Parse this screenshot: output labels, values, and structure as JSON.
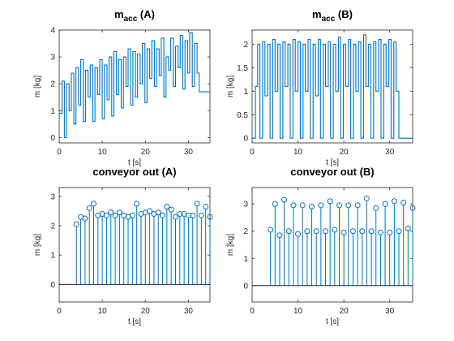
{
  "colors": {
    "line": "#0072BD",
    "axis": "#262626",
    "zero": "#000000"
  },
  "chart_data": [
    {
      "type": "line",
      "title_main": "m",
      "title_sub": "acc",
      "title_rest": " (A)",
      "xlabel": "t [s]",
      "ylabel": "m [kg]",
      "xlim": [
        0,
        35
      ],
      "ylim": [
        -0.2,
        4
      ],
      "xticks": [
        0,
        10,
        20,
        30
      ],
      "yticks": [
        0,
        1,
        2,
        3,
        4
      ],
      "x": [
        0,
        0.7,
        1.2,
        1.7,
        2.3,
        2.8,
        3.4,
        3.9,
        4.5,
        5.0,
        5.6,
        6.1,
        6.7,
        7.2,
        7.8,
        8.3,
        8.9,
        9.4,
        10.0,
        10.5,
        11.1,
        11.6,
        12.2,
        12.7,
        13.3,
        13.8,
        14.4,
        14.9,
        15.5,
        16.0,
        16.6,
        17.1,
        17.7,
        18.2,
        18.8,
        19.3,
        19.9,
        20.4,
        21.0,
        21.5,
        22.1,
        22.6,
        23.2,
        23.7,
        24.3,
        24.8,
        25.4,
        25.9,
        26.5,
        27.0,
        27.6,
        28.1,
        28.7,
        29.2,
        29.8,
        30.3,
        30.9,
        31.4,
        32.0,
        32.5,
        35
      ],
      "values": [
        0.9,
        2.1,
        0.0,
        2.0,
        1.0,
        2.4,
        0.5,
        2.6,
        1.2,
        2.9,
        0.6,
        2.5,
        1.5,
        2.7,
        0.6,
        2.6,
        1.6,
        2.9,
        0.7,
        2.7,
        1.4,
        3.0,
        0.8,
        3.2,
        1.6,
        2.9,
        1.1,
        3.0,
        1.9,
        3.3,
        1.2,
        3.2,
        1.5,
        3.1,
        2.0,
        3.5,
        1.3,
        3.3,
        2.2,
        3.6,
        1.9,
        3.3,
        2.3,
        3.7,
        1.5,
        3.0,
        2.5,
        3.7,
        1.9,
        3.4,
        2.6,
        3.8,
        1.8,
        3.6,
        2.4,
        3.9,
        1.9,
        3.5,
        2.4,
        1.7,
        1.7
      ]
    },
    {
      "type": "line",
      "title_main": "m",
      "title_sub": "acc",
      "title_rest": " (B)",
      "xlabel": "t [s]",
      "ylabel": "m [kg]",
      "xlim": [
        0,
        35
      ],
      "ylim": [
        -0.1,
        2.3
      ],
      "xticks": [
        0,
        10,
        20,
        30
      ],
      "yticks": [
        0,
        0.5,
        1,
        1.5,
        2
      ],
      "x": [
        0,
        0.7,
        1.2,
        1.7,
        2.3,
        2.8,
        3.4,
        3.9,
        4.5,
        5.0,
        5.6,
        6.1,
        6.7,
        7.2,
        7.8,
        8.3,
        8.9,
        9.4,
        10.0,
        10.5,
        11.1,
        11.6,
        12.2,
        12.7,
        13.3,
        13.8,
        14.4,
        14.9,
        15.5,
        16.0,
        16.6,
        17.1,
        17.7,
        18.2,
        18.8,
        19.3,
        19.9,
        20.4,
        21.0,
        21.5,
        22.1,
        22.6,
        23.2,
        23.7,
        24.3,
        24.8,
        25.4,
        25.9,
        26.5,
        27.0,
        27.6,
        28.1,
        28.7,
        29.2,
        29.8,
        30.3,
        30.9,
        31.4,
        32.0,
        32.5,
        35
      ],
      "values": [
        0.0,
        1.1,
        2.0,
        0.0,
        2.05,
        0.9,
        2.0,
        0.0,
        2.1,
        1.0,
        2.0,
        0.0,
        2.05,
        1.1,
        2.0,
        0.0,
        2.1,
        1.0,
        2.05,
        0.0,
        2.0,
        1.0,
        2.1,
        0.0,
        2.0,
        0.9,
        2.1,
        0.0,
        2.0,
        1.1,
        2.05,
        0.0,
        2.0,
        1.0,
        2.15,
        0.0,
        2.0,
        1.1,
        2.1,
        0.0,
        2.0,
        1.0,
        2.05,
        0.0,
        2.2,
        1.1,
        2.0,
        0.0,
        2.05,
        1.0,
        2.1,
        0.0,
        2.0,
        1.1,
        2.1,
        0.0,
        2.05,
        1.0,
        0.0,
        0.0,
        0.0
      ]
    },
    {
      "type": "stem",
      "title_main": "conveyor out (A)",
      "title_sub": "",
      "title_rest": "",
      "xlabel": "t [s]",
      "ylabel": "m [kg]",
      "xlim": [
        0,
        35
      ],
      "ylim": [
        -0.6,
        3.3
      ],
      "xticks": [
        0,
        10,
        20,
        30
      ],
      "yticks": [
        0,
        1,
        2,
        3
      ],
      "x": [
        4,
        5,
        6,
        7,
        8,
        9,
        10,
        11,
        12,
        13,
        14,
        15,
        16,
        17,
        18,
        19,
        20,
        21,
        22,
        23,
        24,
        25,
        26,
        27,
        28,
        29,
        30,
        31,
        32,
        33,
        34,
        35
      ],
      "values": [
        2.05,
        2.3,
        2.25,
        2.6,
        2.75,
        2.35,
        2.4,
        2.35,
        2.45,
        2.35,
        2.45,
        2.35,
        2.3,
        2.35,
        2.75,
        2.4,
        2.45,
        2.5,
        2.4,
        2.45,
        2.35,
        2.65,
        2.55,
        2.3,
        2.4,
        2.4,
        2.35,
        2.35,
        2.75,
        2.35,
        2.65,
        2.3
      ]
    },
    {
      "type": "stem",
      "title_main": "conveyor out (B)",
      "title_sub": "",
      "title_rest": "",
      "xlabel": "t [s]",
      "ylabel": "m [kg]",
      "xlim": [
        0,
        35
      ],
      "ylim": [
        -0.6,
        3.6
      ],
      "xticks": [
        0,
        10,
        20,
        30
      ],
      "yticks": [
        0,
        1,
        2,
        3
      ],
      "x": [
        4,
        5,
        6,
        7,
        8,
        9,
        10,
        11,
        12,
        13,
        14,
        15,
        16,
        17,
        18,
        19,
        20,
        21,
        22,
        23,
        24,
        25,
        26,
        27,
        28,
        29,
        30,
        31,
        32,
        33,
        34,
        35
      ],
      "values": [
        2.05,
        3.0,
        1.85,
        3.15,
        2.0,
        2.95,
        1.9,
        2.95,
        2.0,
        2.9,
        2.0,
        2.95,
        2.0,
        3.1,
        2.05,
        2.95,
        1.95,
        2.95,
        2.0,
        2.95,
        2.0,
        3.2,
        2.0,
        2.85,
        1.95,
        3.0,
        1.95,
        3.1,
        2.0,
        3.05,
        2.1,
        2.85
      ]
    }
  ]
}
